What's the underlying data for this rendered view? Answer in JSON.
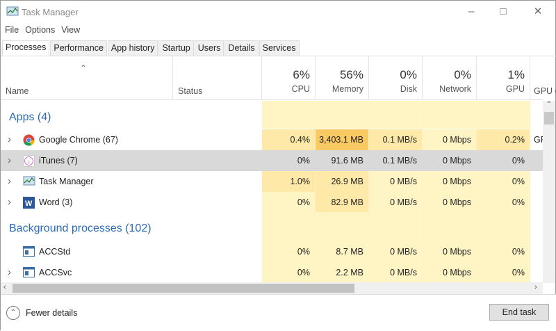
{
  "window": {
    "title": "Task Manager"
  },
  "menu": [
    "File",
    "Options",
    "View"
  ],
  "tabs": [
    "Processes",
    "Performance",
    "App history",
    "Startup",
    "Users",
    "Details",
    "Services"
  ],
  "columns": {
    "name": "Name",
    "status": "Status",
    "cpu": {
      "pct": "6%",
      "label": "CPU"
    },
    "memory": {
      "pct": "56%",
      "label": "Memory"
    },
    "disk": {
      "pct": "0%",
      "label": "Disk"
    },
    "network": {
      "pct": "0%",
      "label": "Network"
    },
    "gpu": {
      "pct": "1%",
      "label": "GPU"
    },
    "gpu_engine": {
      "label": "GPU e"
    }
  },
  "groups": {
    "apps": "Apps (4)",
    "background": "Background processes (102)"
  },
  "apps": [
    {
      "name": "Google Chrome (67)",
      "icon": "chrome-icon",
      "cpu": "0.4%",
      "memory": "3,403.1 MB",
      "disk": "0.1 MB/s",
      "network": "0 Mbps",
      "gpu": "0.2%",
      "gpu_engine": "GF",
      "expandable": true
    },
    {
      "name": "iTunes (7)",
      "icon": "itunes-icon",
      "cpu": "0%",
      "memory": "91.6 MB",
      "disk": "0.1 MB/s",
      "network": "0 Mbps",
      "gpu": "0%",
      "gpu_engine": "",
      "expandable": true,
      "selected": true
    },
    {
      "name": "Task Manager",
      "icon": "task-manager-icon",
      "cpu": "1.0%",
      "memory": "26.9 MB",
      "disk": "0 MB/s",
      "network": "0 Mbps",
      "gpu": "0%",
      "gpu_engine": "",
      "expandable": true
    },
    {
      "name": "Word (3)",
      "icon": "word-icon",
      "cpu": "0%",
      "memory": "82.9 MB",
      "disk": "0 MB/s",
      "network": "0 Mbps",
      "gpu": "0%",
      "gpu_engine": "",
      "expandable": true
    }
  ],
  "background": [
    {
      "name": "ACCStd",
      "icon": "service-icon",
      "cpu": "0%",
      "memory": "8.7 MB",
      "disk": "0 MB/s",
      "network": "0 Mbps",
      "gpu": "0%",
      "gpu_engine": "",
      "expandable": false
    },
    {
      "name": "ACCSvc",
      "icon": "service-icon",
      "cpu": "0%",
      "memory": "2.2 MB",
      "disk": "0 MB/s",
      "network": "0 Mbps",
      "gpu": "0%",
      "gpu_engine": "",
      "expandable": true
    }
  ],
  "footer": {
    "fewer_details": "Fewer details",
    "end_task": "End task"
  },
  "colors": {
    "heat_light": "#fff4c4",
    "heat_mid": "#ffe9a8",
    "heat_high": "#f9c962",
    "selected": "#d9d9d9",
    "group": "#2a6bb5"
  }
}
